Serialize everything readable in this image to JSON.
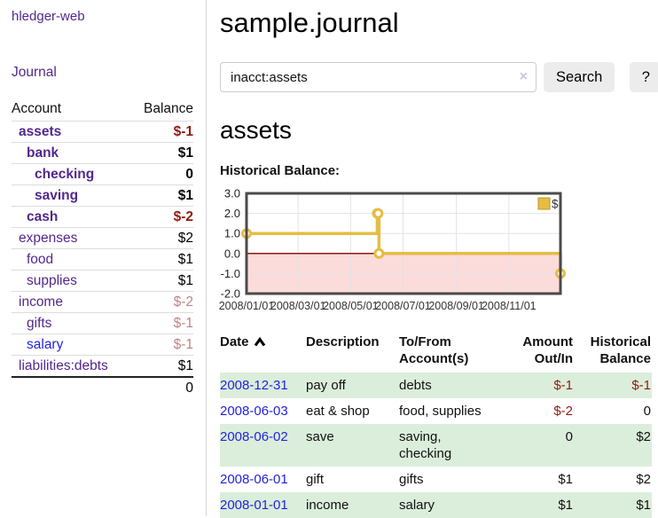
{
  "app": {
    "title": "hledger-web"
  },
  "colors": {
    "purple": "#53278e",
    "blue": "#2323dd",
    "negstrong": "#8e1c12",
    "negsoft": "#bf8484",
    "rowgreen": "#dbeedb",
    "clearx": "#cec4e4",
    "gold": "#e6bc44"
  },
  "sidebar": {
    "journal_link": "Journal",
    "headers": {
      "account": "Account",
      "balance": "Balance"
    },
    "accounts": [
      {
        "name": "assets",
        "balance": "$-1"
      },
      {
        "name": "bank",
        "balance": "$1"
      },
      {
        "name": "checking",
        "balance": "0"
      },
      {
        "name": "saving",
        "balance": "$1"
      },
      {
        "name": "cash",
        "balance": "$-2"
      },
      {
        "name": "expenses",
        "balance": "$2"
      },
      {
        "name": "food",
        "balance": "$1"
      },
      {
        "name": "supplies",
        "balance": "$1"
      },
      {
        "name": "income",
        "balance": "$-2"
      },
      {
        "name": "gifts",
        "balance": "$-1"
      },
      {
        "name": "salary",
        "balance": "$-1"
      },
      {
        "name": "liabilities:debts",
        "balance": "$1"
      }
    ],
    "total": "0"
  },
  "main": {
    "title": "sample.journal",
    "search": {
      "value": "inacct:assets",
      "clear": "×",
      "search_button": "Search",
      "help_button": "?"
    },
    "account_heading": "assets",
    "section_label": "Historical Balance:"
  },
  "chart_data": {
    "type": "line",
    "title": "Historical Balance",
    "step": true,
    "series": [
      {
        "name": "$",
        "points": [
          [
            "2008-01-01",
            1
          ],
          [
            "2008-06-01",
            2
          ],
          [
            "2008-06-02",
            2
          ],
          [
            "2008-06-03",
            0
          ],
          [
            "2008-12-31",
            -1
          ]
        ]
      }
    ],
    "x_range": [
      "2008-01-01",
      "2008-12-31"
    ],
    "x_ticks": [
      "2008/01/01",
      "2008/03/01",
      "2008/05/01",
      "2008/07/01",
      "2008/09/01",
      "2008/11/01"
    ],
    "y_ticks": [
      3.0,
      2.0,
      1.0,
      0.0,
      -1.0,
      -2.0
    ],
    "ylim": [
      -2,
      3
    ],
    "grid": true,
    "legend": {
      "label": "$",
      "position": "top-right"
    },
    "line_color": "#e6bc44",
    "marker_fill": "#ffffff",
    "negative_region_color": "#fcdbdb",
    "zero_line_color": "#8c1a10",
    "plot_border_color": "#4a4a4a"
  },
  "register": {
    "headers": {
      "date": "Date",
      "description": "Description",
      "accounts": "To/From Account(s)",
      "amount": "Amount Out/In",
      "balance": "Historical Balance"
    },
    "rows": [
      {
        "date": "2008-12-31",
        "description": "pay off",
        "accounts": "debts",
        "amount": "$-1",
        "balance": "$-1"
      },
      {
        "date": "2008-06-03",
        "description": "eat & shop",
        "accounts": "food, supplies",
        "amount": "$-2",
        "balance": "0"
      },
      {
        "date": "2008-06-02",
        "description": "save",
        "accounts": "saving, checking",
        "amount": "0",
        "balance": "$2"
      },
      {
        "date": "2008-06-01",
        "description": "gift",
        "accounts": "gifts",
        "amount": "$1",
        "balance": "$2"
      },
      {
        "date": "2008-01-01",
        "description": "income",
        "accounts": "salary",
        "amount": "$1",
        "balance": "$1"
      }
    ]
  }
}
